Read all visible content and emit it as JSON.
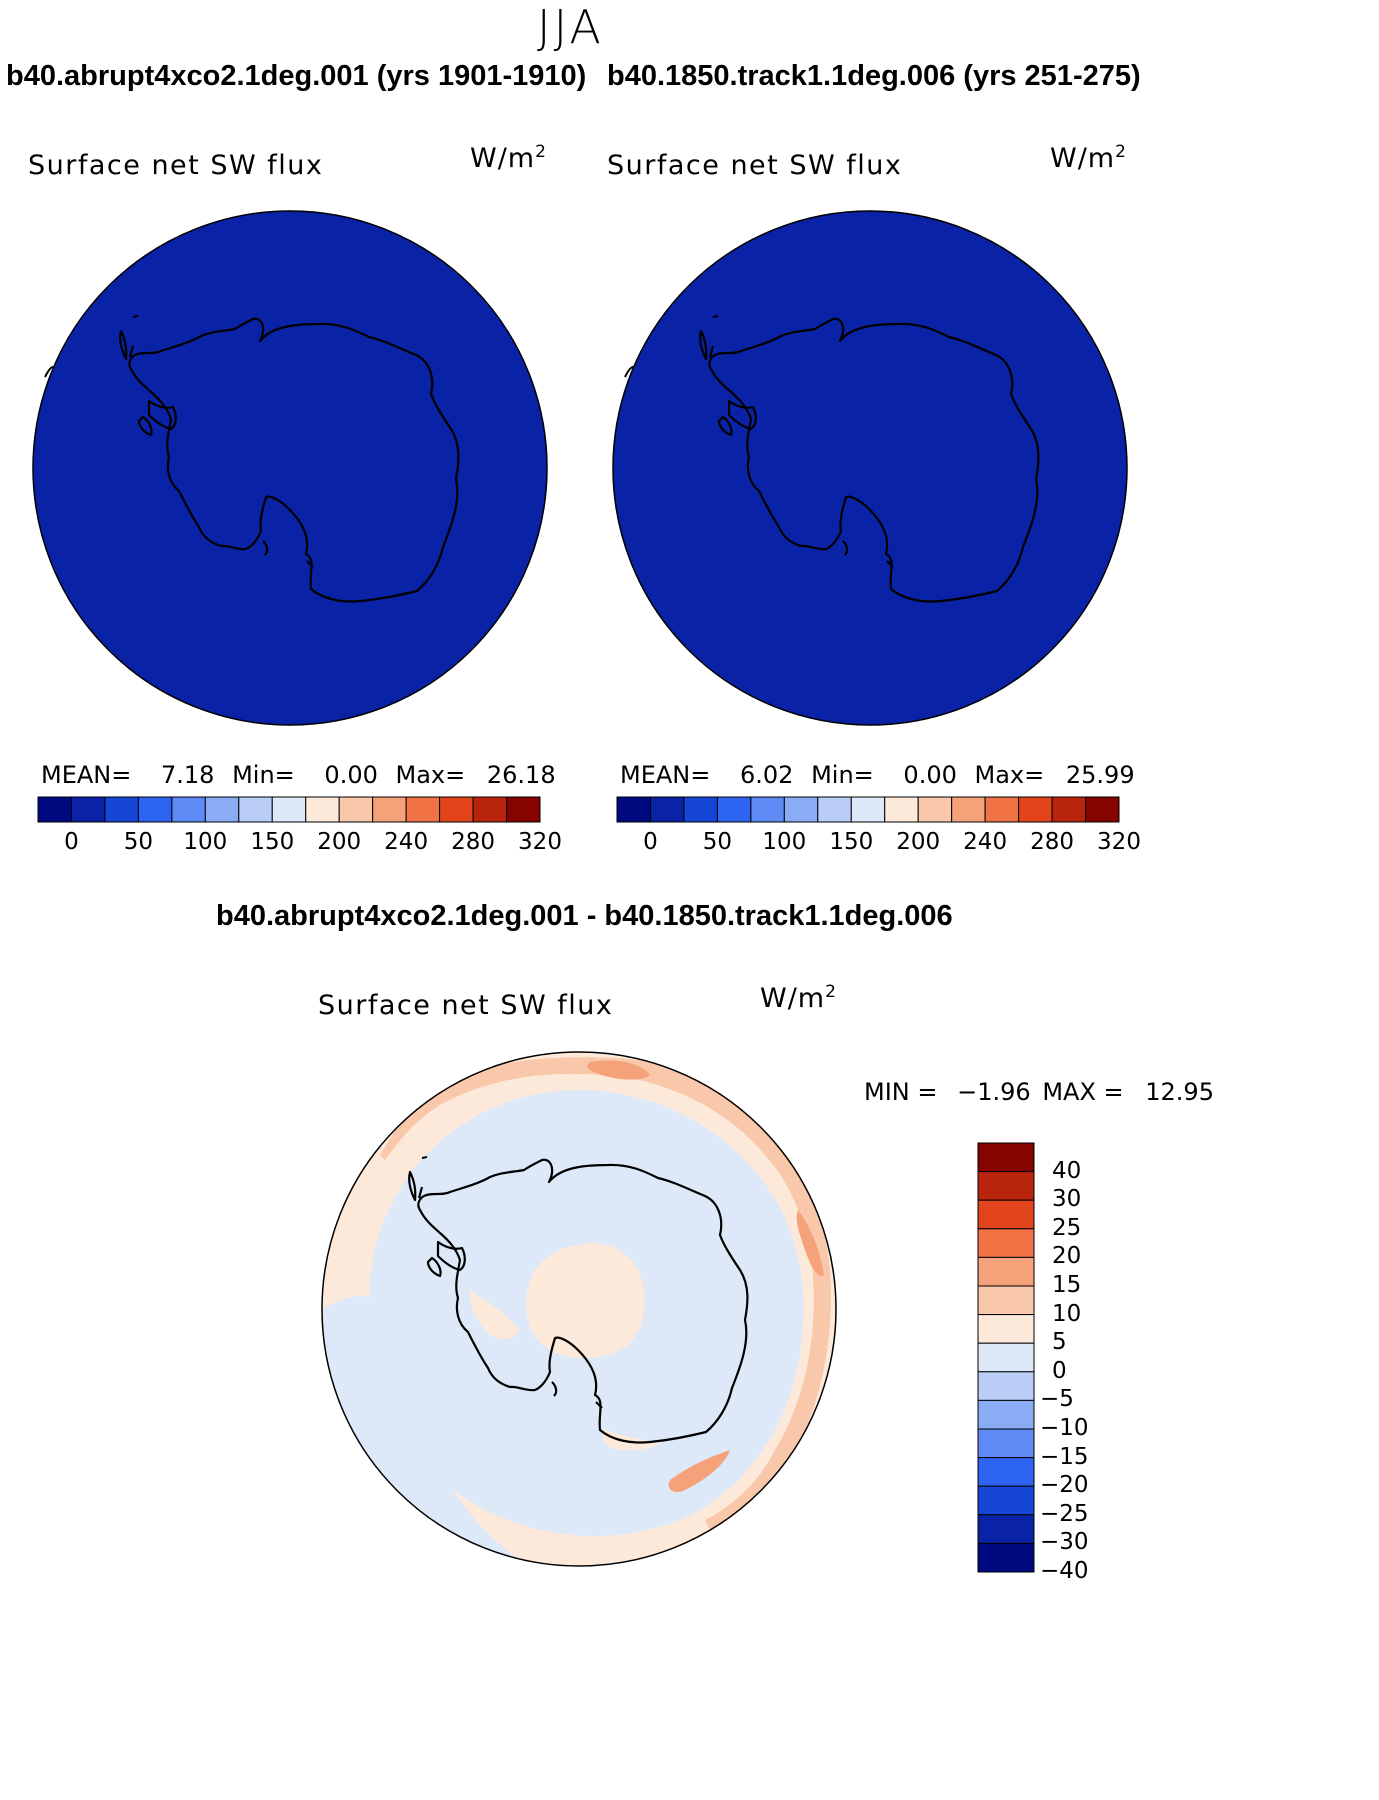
{
  "season": "JJA",
  "panel_left": {
    "title": "b40.abrupt4xco2.1deg.001 (yrs 1901-1910)",
    "variable": "Surface net SW flux",
    "units": "W/m",
    "units_sup": "2",
    "stats": {
      "mean_label": "MEAN=",
      "mean": "7.18",
      "min_label": "Min=",
      "min": "0.00",
      "max_label": "Max=",
      "max": "26.18"
    }
  },
  "panel_right": {
    "title": "b40.1850.track1.1deg.006 (yrs 251-275)",
    "variable": "Surface net SW flux",
    "units": "W/m",
    "units_sup": "2",
    "stats": {
      "mean_label": "MEAN=",
      "mean": "6.02",
      "min_label": "Min=",
      "min": "0.00",
      "max_label": "Max=",
      "max": "25.99"
    }
  },
  "colorbar_top": {
    "colors": [
      "#000a80",
      "#0a23a6",
      "#1646d6",
      "#2e64f2",
      "#5e8af5",
      "#8aacf5",
      "#b9cdf7",
      "#dde9f8",
      "#fde9da",
      "#f9c8ab",
      "#f5a17a",
      "#f07245",
      "#e2451c",
      "#b8250c",
      "#850400"
    ],
    "labels": [
      "0",
      "50",
      "100",
      "150",
      "200",
      "240",
      "280",
      "320"
    ]
  },
  "panel_diff": {
    "title": "b40.abrupt4xco2.1deg.001 - b40.1850.track1.1deg.006",
    "variable": "Surface net SW flux",
    "units": "W/m",
    "units_sup": "2",
    "stats": {
      "min_label": "MIN =",
      "min": "−1.96",
      "max_label": "MAX =",
      "max": "12.95"
    }
  },
  "colorbar_diff": {
    "colors_top_to_bottom": [
      "#850400",
      "#b8250c",
      "#e2451c",
      "#f07245",
      "#f5a17a",
      "#f9c8ab",
      "#fde9da",
      "#dde9f8",
      "#b9cdf7",
      "#8aacf5",
      "#5e8af5",
      "#2e64f2",
      "#1646d6",
      "#0a23a6",
      "#000a80"
    ],
    "labels": [
      "40",
      "30",
      "25",
      "20",
      "15",
      "10",
      "5",
      "0",
      "−5",
      "−10",
      "−15",
      "−20",
      "−25",
      "−30",
      "−40"
    ]
  },
  "map_fill": "#0a23a6",
  "diff_colors": {
    "neg_small": "#dde9f8",
    "pos_small": "#fde9da",
    "pos_mid": "#f9c8ab",
    "pos_high": "#f5a17a"
  }
}
